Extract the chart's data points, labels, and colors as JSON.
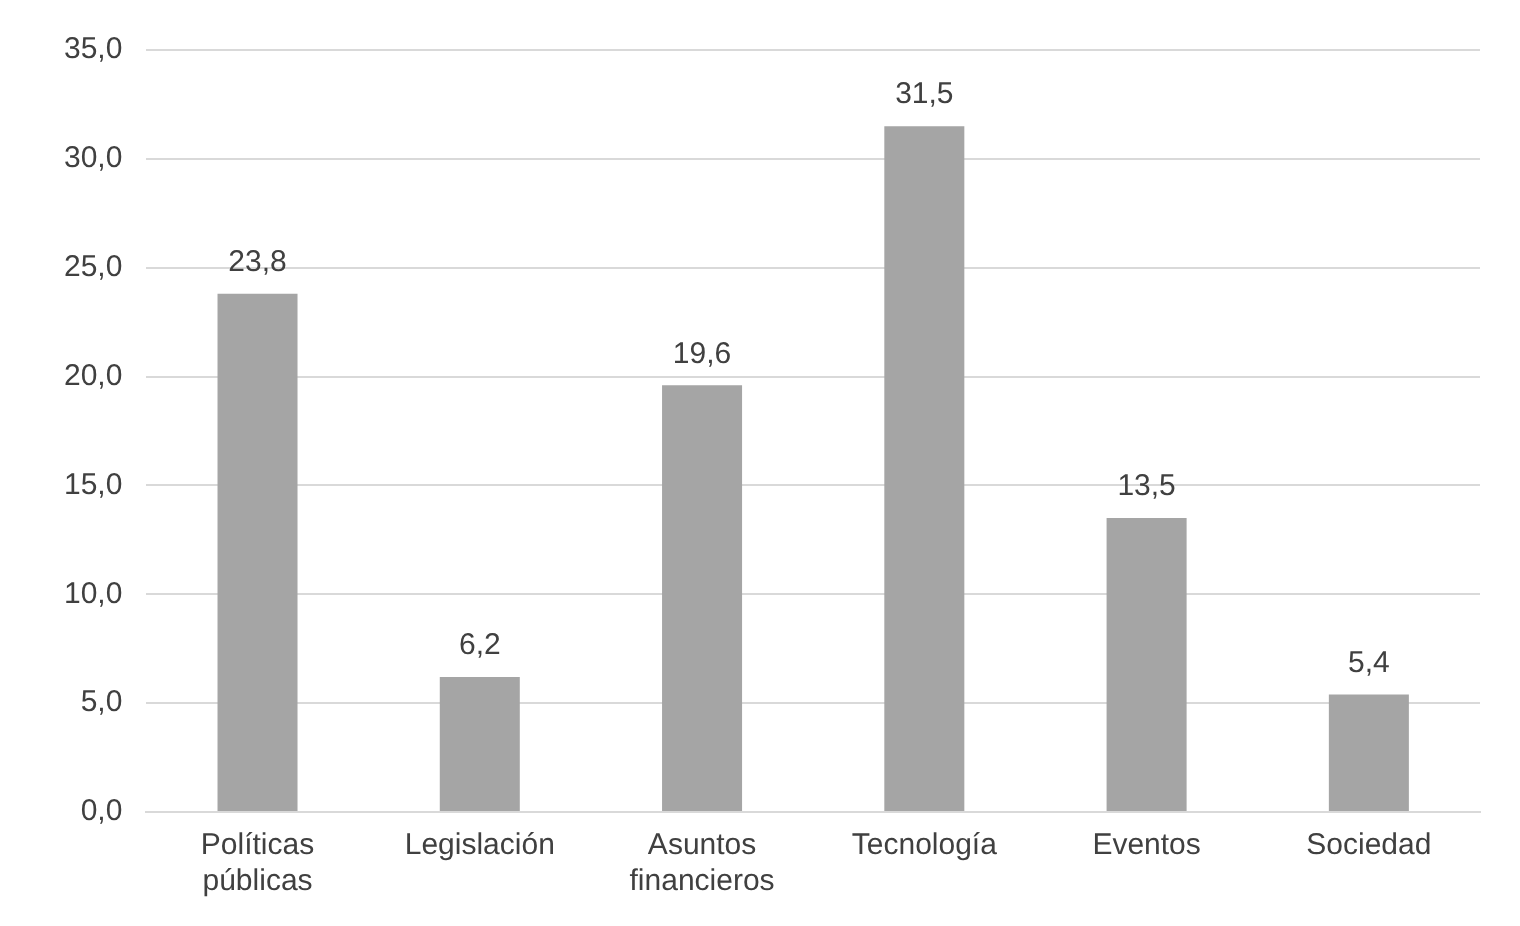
{
  "chart_data": {
    "type": "bar",
    "categories": [
      "Políticas públicas",
      "Legislación",
      "Asuntos financieros",
      "Tecnología",
      "Eventos",
      "Sociedad"
    ],
    "values": [
      23.8,
      6.2,
      19.6,
      31.5,
      13.5,
      5.4
    ],
    "value_labels": [
      "23,8",
      "6,2",
      "19,6",
      "31,5",
      "13,5",
      "5,4"
    ],
    "color": "#a5a5a5",
    "ylim": [
      0,
      35
    ],
    "yticks": [
      {
        "value": 0,
        "label": "0,0"
      },
      {
        "value": 5,
        "label": "5,0"
      },
      {
        "value": 10,
        "label": "10,0"
      },
      {
        "value": 15,
        "label": "15,0"
      },
      {
        "value": 20,
        "label": "20,0"
      },
      {
        "value": 25,
        "label": "25,0"
      },
      {
        "value": 30,
        "label": "30,0"
      },
      {
        "value": 35,
        "label": "35,0"
      }
    ],
    "grid": "y",
    "legend": false
  }
}
